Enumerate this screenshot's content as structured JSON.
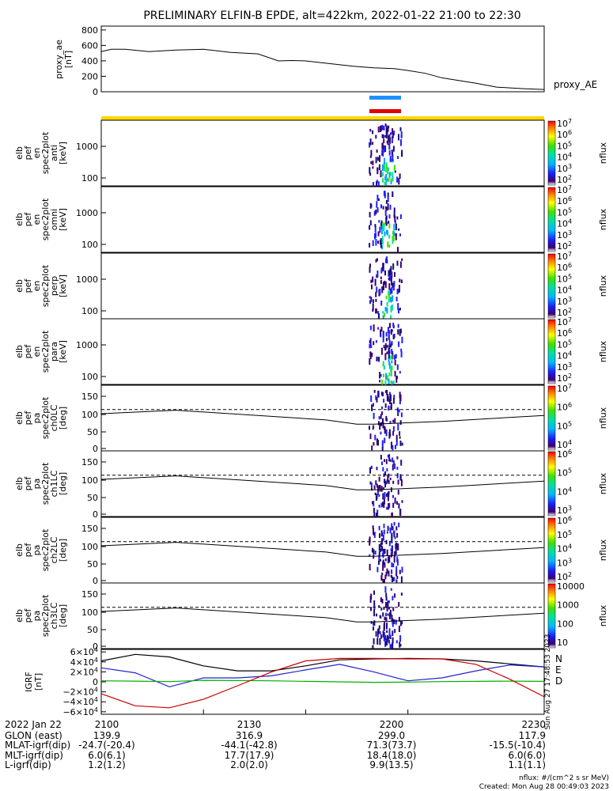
{
  "title": "PRELIMINARY ELFIN-B EPDE, alt=422km, 2022-01-22 21:00 to 22:30",
  "colors": {
    "blue_bar": "#1e90ff",
    "red_bar": "#e00000",
    "yellow_bar": "#ffd700",
    "bx": "#000000",
    "by": "#2222cc",
    "bz": "#00b000",
    "bd": "#cc0000"
  },
  "proxy_ae": {
    "ylabel_lines": [
      "proxy_ae",
      "[nT]"
    ],
    "yticks": [
      "800",
      "600",
      "400",
      "200",
      "0"
    ],
    "legend": "proxy_AE",
    "chart_data": {
      "type": "line",
      "x_minutes": [
        0,
        3,
        7,
        14,
        22,
        30,
        38,
        46,
        52,
        56,
        60,
        68,
        74,
        80,
        86,
        90,
        95,
        100,
        110,
        116,
        120,
        124,
        130
      ],
      "y_nT": [
        520,
        550,
        550,
        520,
        540,
        550,
        510,
        490,
        400,
        405,
        400,
        360,
        330,
        310,
        300,
        275,
        240,
        180,
        110,
        60,
        50,
        40,
        30
      ],
      "ylim": [
        0,
        850
      ]
    }
  },
  "panels": [
    {
      "label_lines": [
        "elb",
        "pef",
        "en",
        "spec2plot",
        "anti",
        "[keV]"
      ],
      "yticks": [
        "1000",
        "100"
      ],
      "cbar_label": "nflux",
      "cbar_ticks": [
        "10^7",
        "10^6",
        "10^5",
        "10^4",
        "10^3",
        "10^2"
      ]
    },
    {
      "label_lines": [
        "elb",
        "pef",
        "en",
        "spec2plot",
        "omni",
        "[keV]"
      ],
      "yticks": [
        "1000",
        "100"
      ],
      "cbar_label": "nflux",
      "cbar_ticks": [
        "10^7",
        "10^6",
        "10^5",
        "10^4",
        "10^3",
        "10^2"
      ]
    },
    {
      "label_lines": [
        "elb",
        "pef",
        "en",
        "spec2plot",
        "perp",
        "[keV]"
      ],
      "yticks": [
        "1000",
        "100"
      ],
      "cbar_label": "nflux",
      "cbar_ticks": [
        "10^7",
        "10^6",
        "10^5",
        "10^4",
        "10^3",
        "10^2"
      ]
    },
    {
      "label_lines": [
        "elb",
        "pef",
        "en",
        "spec2plot",
        "para",
        "[keV]"
      ],
      "yticks": [
        "1000",
        "100"
      ],
      "cbar_label": "nflux",
      "cbar_ticks": [
        "10^7",
        "10^6",
        "10^5",
        "10^4",
        "10^3",
        "10^2"
      ]
    },
    {
      "label_lines": [
        "elb",
        "pef",
        "pa",
        "spec2plot",
        "ch0LC",
        "[deg]"
      ],
      "yticks": [
        "150",
        "100",
        "50",
        "0"
      ],
      "cbar_label": "nflux",
      "cbar_ticks": [
        "10^7",
        "10^6",
        "10^5",
        "10^4"
      ]
    },
    {
      "label_lines": [
        "elb",
        "pef",
        "pa",
        "spec2plot",
        "ch1LC",
        "[deg]"
      ],
      "yticks": [
        "150",
        "100",
        "50",
        "0"
      ],
      "cbar_label": "nflux",
      "cbar_ticks": [
        "10^6",
        "10^5",
        "10^4",
        "10^3"
      ]
    },
    {
      "label_lines": [
        "elb",
        "pef",
        "pa",
        "spec2plot",
        "ch2LC",
        "[deg]"
      ],
      "yticks": [
        "150",
        "100",
        "50",
        "0"
      ],
      "cbar_label": "nflux",
      "cbar_ticks": [
        "10^6",
        "10^5",
        "10^4",
        "10^3",
        "10^2"
      ]
    },
    {
      "label_lines": [
        "elb",
        "pef",
        "pa",
        "spec2plot",
        "ch3LC",
        "[deg]"
      ],
      "yticks": [
        "150",
        "100",
        "50",
        "0"
      ],
      "cbar_label": "nflux",
      "cbar_ticks": [
        "10000",
        "1000",
        "100",
        "10"
      ]
    }
  ],
  "igrf": {
    "ylabel_lines": [
      "IGRF",
      "[nT]"
    ],
    "yticks": [
      "6×10^4",
      "4×10^4",
      "2×10^4",
      "0",
      "−2×10^4",
      "−4×10^4",
      "−6×10^4"
    ],
    "legend": [
      "N",
      "E",
      "D"
    ],
    "side_text": "Sun Aug 27 17:48:53 2023",
    "chart_data": {
      "type": "line",
      "x_minutes": [
        0,
        10,
        20,
        30,
        40,
        50,
        60,
        70,
        80,
        90,
        100,
        110,
        120,
        130
      ],
      "series": [
        {
          "key": "bx",
          "values": [
            42000,
            55000,
            50000,
            32000,
            22000,
            22000,
            32000,
            44000,
            46000,
            47000,
            46000,
            42000,
            36000,
            30000
          ]
        },
        {
          "key": "by",
          "values": [
            28000,
            18000,
            -10000,
            8000,
            8000,
            12000,
            24000,
            35000,
            20000,
            2000,
            8000,
            22000,
            34000,
            30000
          ]
        },
        {
          "key": "bz",
          "values": [
            2000,
            1500,
            500,
            3000,
            2500,
            2000,
            1000,
            0,
            -1000,
            -500,
            500,
            1000,
            1500,
            1000
          ]
        },
        {
          "key": "bd",
          "values": [
            -24000,
            -48000,
            -52000,
            -35000,
            -8000,
            20000,
            42000,
            47000,
            47000,
            46000,
            46000,
            35000,
            5000,
            -30000
          ]
        }
      ],
      "ylim": [
        -65000,
        65000
      ]
    }
  },
  "xticks": [
    "2100",
    "2130",
    "2200",
    "2230"
  ],
  "ephemeris": {
    "labels": [
      "2022 Jan 22",
      "GLON (east)",
      "MLAT-igrf(dip)",
      "MLT-igrf(dip)",
      "L-igrf(dip)"
    ],
    "rows": [
      [
        "2100",
        "2130",
        "2200",
        "2230"
      ],
      [
        "139.9",
        "316.9",
        "299.0",
        "117.9"
      ],
      [
        "-24.7(-20.4)",
        "-44.1(-42.8)",
        "71.3(73.7)",
        "-15.5(-10.4)"
      ],
      [
        "6.0(6.1)",
        "17.7(17.9)",
        "18.4(18.0)",
        "6.0(6.0)"
      ],
      [
        "1.2(1.2)",
        "2.0(2.0)",
        "9.9(13.5)",
        "1.1(1.1)"
      ]
    ]
  },
  "footer": {
    "units": "nflux: #/(cm^2 s sr MeV)",
    "created": "Created: Mon Aug 28 00:49:03 2023"
  }
}
